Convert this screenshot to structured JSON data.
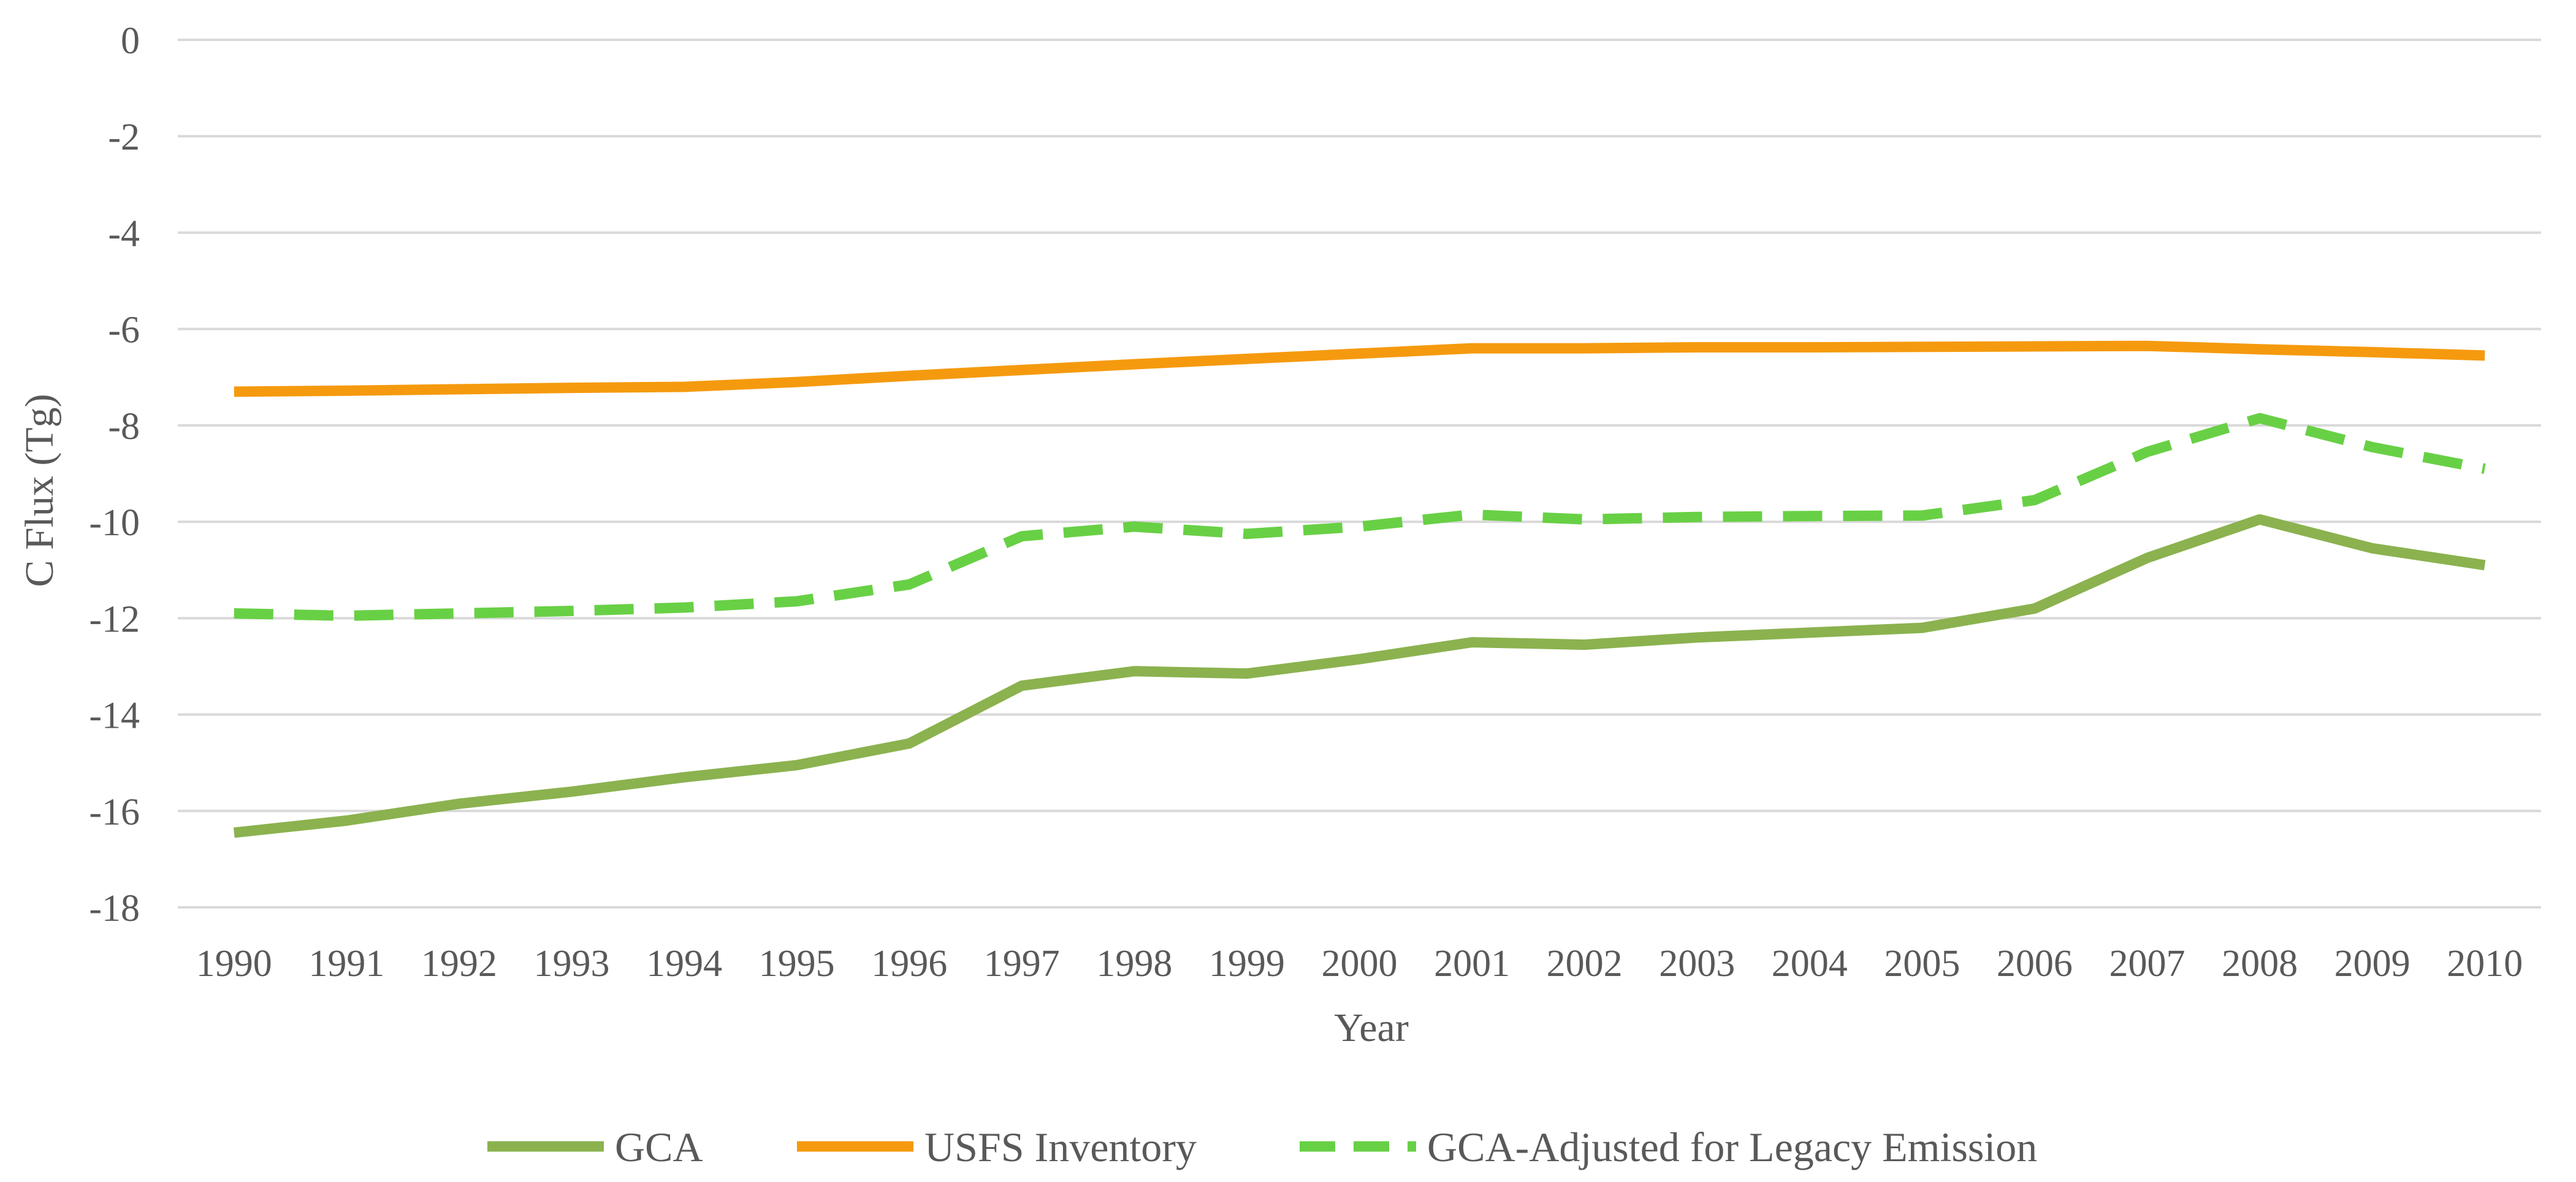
{
  "chart_data": {
    "type": "line",
    "title": "",
    "xlabel": "Year",
    "ylabel": "C Flux (Tg)",
    "ylim": [
      -18,
      0
    ],
    "yticks": [
      0,
      -2,
      -4,
      -6,
      -8,
      -10,
      -12,
      -14,
      -16,
      -18
    ],
    "ytick_labels": [
      "0",
      "-2",
      "-4",
      "-6",
      "-8",
      "-10",
      "-12",
      "-14",
      "-16",
      "-18"
    ],
    "grid": true,
    "legend_position": "bottom",
    "categories": [
      "1990",
      "1991",
      "1992",
      "1993",
      "1994",
      "1995",
      "1996",
      "1997",
      "1998",
      "1999",
      "2000",
      "2001",
      "2002",
      "2003",
      "2004",
      "2005",
      "2006",
      "2007",
      "2008",
      "2009",
      "2010"
    ],
    "series": [
      {
        "name": "GCA",
        "color": "#8bb24f",
        "dash": "solid",
        "values": [
          -16.45,
          -16.2,
          -15.85,
          -15.6,
          -15.3,
          -15.05,
          -14.6,
          -13.4,
          -13.1,
          -13.15,
          -12.85,
          -12.5,
          -12.55,
          -12.4,
          -12.3,
          -12.2,
          -11.8,
          -10.75,
          -9.95,
          -10.55,
          -10.9
        ]
      },
      {
        "name": "USFS Inventory",
        "color": "#f59a0e",
        "dash": "solid",
        "values": [
          -7.3,
          -7.28,
          -7.25,
          -7.22,
          -7.2,
          -7.1,
          -6.97,
          -6.85,
          -6.73,
          -6.62,
          -6.51,
          -6.4,
          -6.4,
          -6.38,
          -6.38,
          -6.37,
          -6.36,
          -6.35,
          -6.42,
          -6.48,
          -6.55
        ]
      },
      {
        "name": "GCA-Adjusted for Legacy Emission",
        "color": "#68d045",
        "dash": "dashed",
        "values": [
          -11.9,
          -11.95,
          -11.9,
          -11.85,
          -11.78,
          -11.65,
          -11.3,
          -10.3,
          -10.1,
          -10.25,
          -10.1,
          -9.85,
          -9.95,
          -9.9,
          -9.88,
          -9.87,
          -9.55,
          -8.55,
          -7.85,
          -8.45,
          -8.9
        ]
      }
    ]
  }
}
